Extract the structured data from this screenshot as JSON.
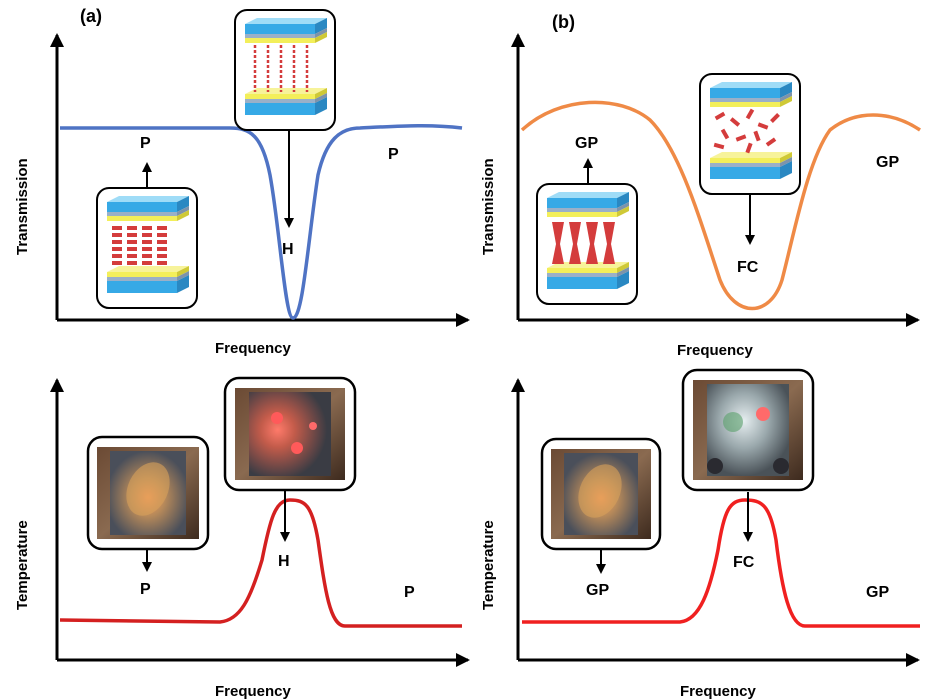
{
  "panel_a": {
    "tag": "(a)",
    "top": {
      "ylabel": "Transmission",
      "xlabel": "Frequency",
      "left_label": "P",
      "right_label": "P",
      "dip_label": "H"
    },
    "bottom": {
      "ylabel": "Temperature",
      "xlabel": "Frequency",
      "left_label": "P",
      "right_label": "P",
      "peak_label": "H"
    }
  },
  "panel_b": {
    "tag": "(b)",
    "top": {
      "ylabel": "Transmission",
      "xlabel": "Frequency",
      "left_label": "GP",
      "right_label": "GP",
      "dip_label": "FC"
    },
    "bottom": {
      "ylabel": "Temperature",
      "xlabel": "Frequency",
      "left_label": "GP",
      "right_label": "GP",
      "peak_label": "FC"
    }
  },
  "colors": {
    "transmission_a": "#4f73c4",
    "transmission_b": "#ef8a46",
    "temperature": "#d42020",
    "glass_top": "#36a9e6",
    "yellow_layer": "#f3ef5a",
    "molecule": "#d43c3c"
  },
  "icons": [
    "cell-homeotropic-icon",
    "cell-planar-icon",
    "cell-focal-conic-icon",
    "cell-grandjean-icon",
    "photo-cell-icon"
  ]
}
